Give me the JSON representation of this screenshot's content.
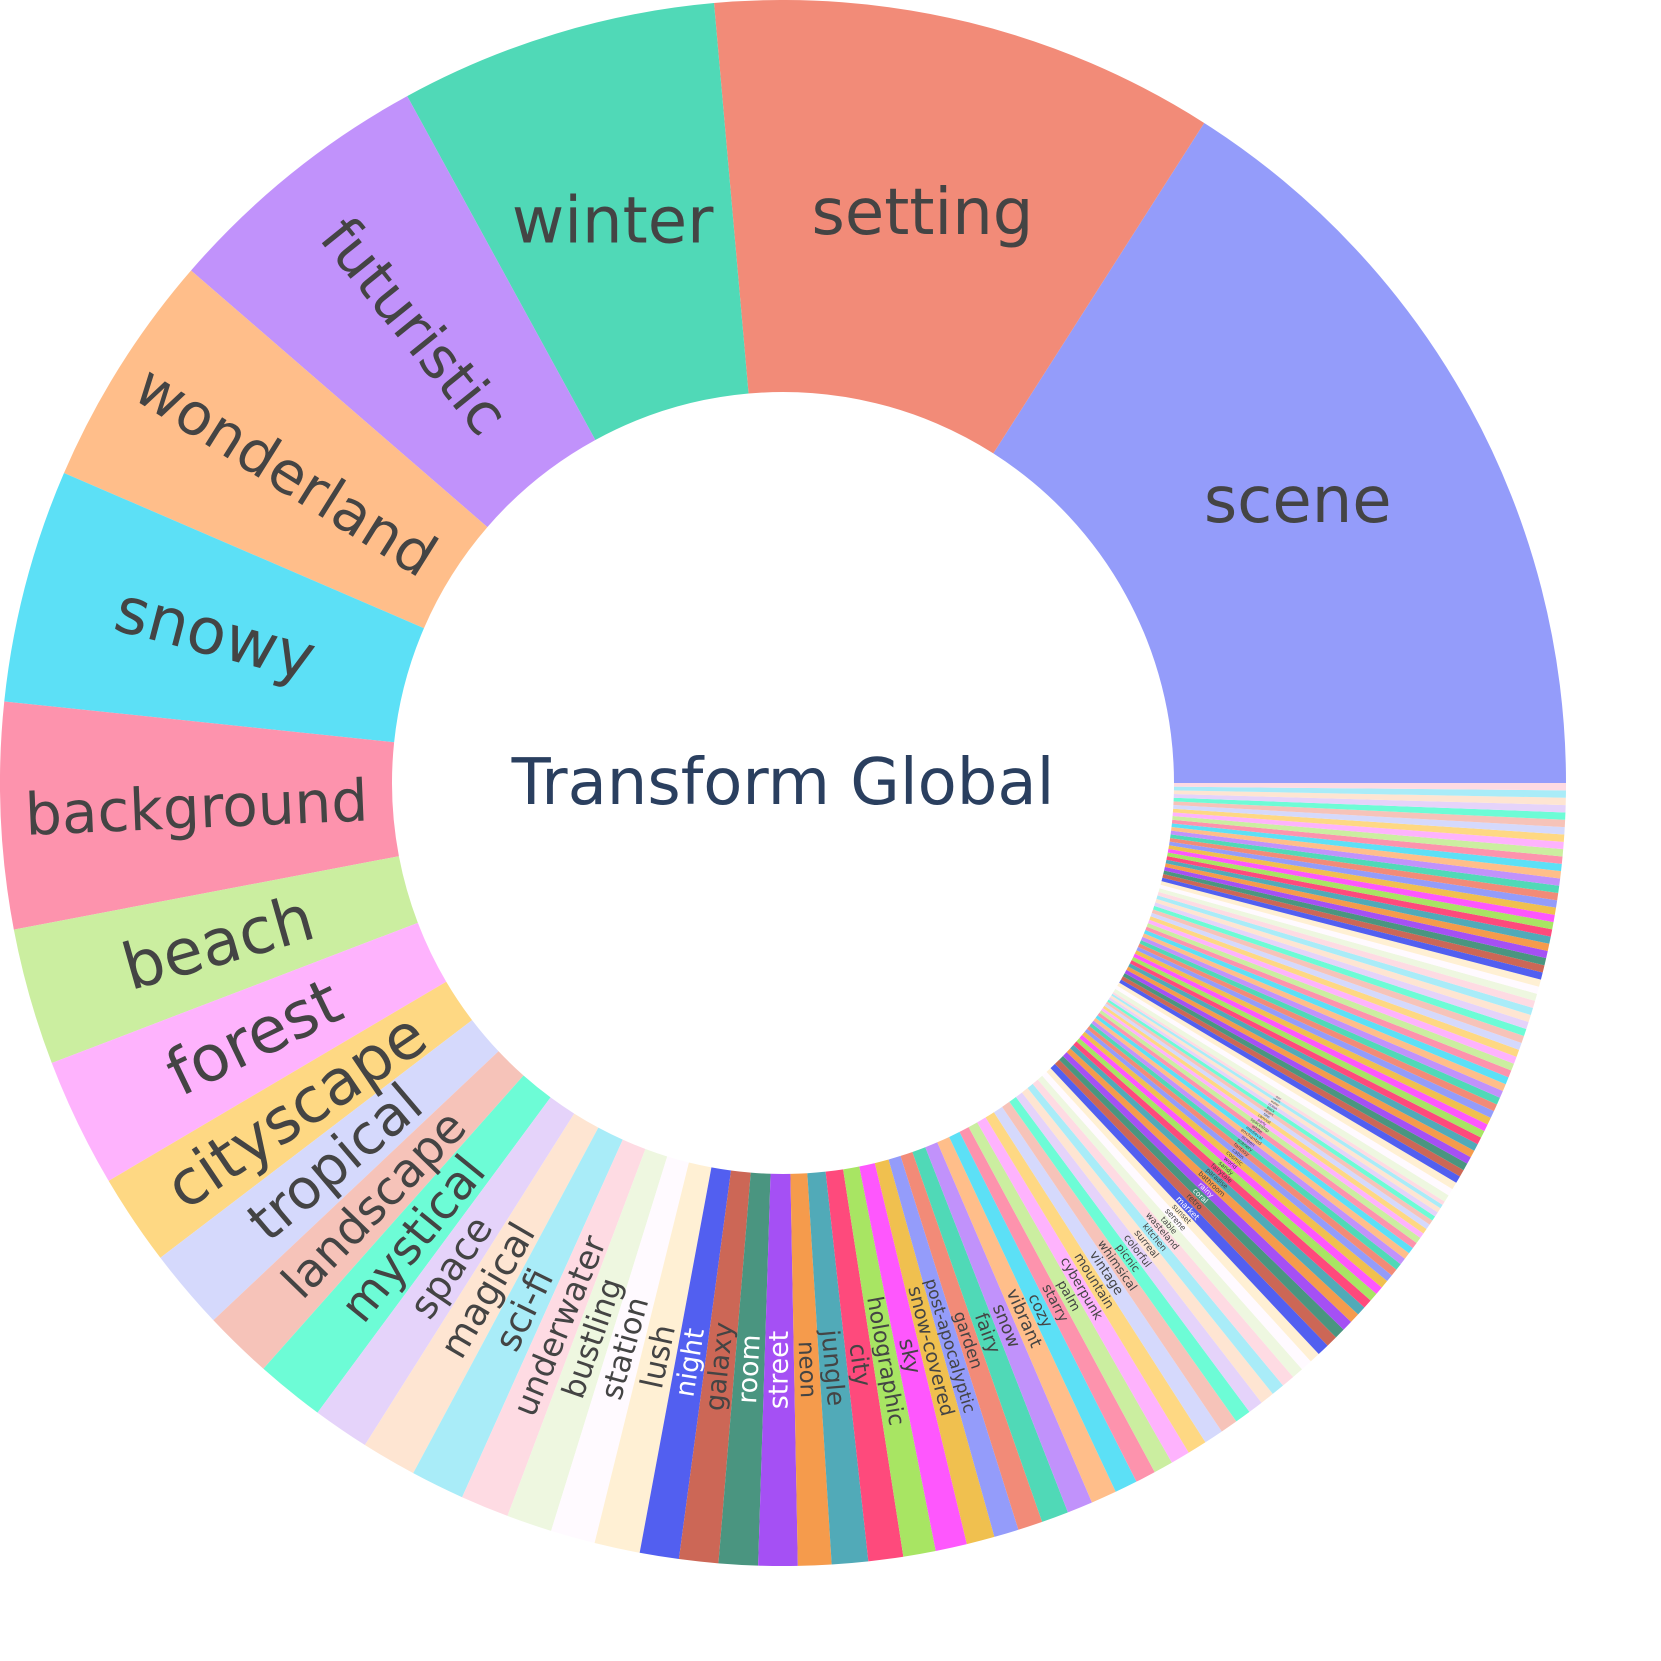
{
  "chart_data": {
    "type": "sunburst",
    "center_label": "Transform Global",
    "categories": [
      "scene",
      "setting",
      "winter",
      "futuristic",
      "wonderland",
      "snowy",
      "background",
      "beach",
      "forest",
      "cityscape",
      "tropical",
      "landscape",
      "mystical",
      "space",
      "magical",
      "sci-fi",
      "underwater",
      "bustling",
      "station",
      "lush",
      "night",
      "galaxy",
      "room",
      "street",
      "neon",
      "jungle",
      "city",
      "holographic",
      "sky",
      "snow-covered",
      "post-apocalyptic",
      "garden",
      "fairy",
      "snow",
      "vibrant",
      "cozy",
      "starry",
      "palm",
      "cyberpunk",
      "mountain",
      "vintage",
      "whimsical",
      "picnic",
      "colorful",
      "surreal",
      "kitchen",
      "wasteland",
      "table",
      "serene",
      "sunset",
      "market",
      "retro",
      "coral",
      "rainy",
      "bathroom",
      "paradise",
      "fairytale",
      "sandy",
      "world",
      "cosmic",
      "cabin",
      "fantasy",
      "scenery",
      "screen",
      "enchanted",
      "medieval",
      "white",
      "spaceship",
      "party",
      "carnival",
      "tale",
      "desert",
      "black",
      "ocean",
      "water",
      "castle",
      "door",
      null,
      null,
      null,
      null,
      null,
      null,
      null,
      null,
      null,
      null,
      null,
      null,
      null,
      null,
      null,
      null,
      null,
      null,
      null,
      null,
      null,
      null,
      null,
      null,
      null,
      null,
      null,
      null,
      null,
      null,
      null,
      null,
      null,
      null,
      null,
      null,
      null,
      null,
      null,
      null,
      null,
      null,
      null,
      null,
      null,
      null,
      null,
      null,
      null,
      null,
      null,
      null,
      null,
      null,
      null,
      null,
      null,
      null,
      null,
      null
    ],
    "values": [
      16.0,
      10.47,
      6.58,
      5.69,
      4.89,
      4.83,
      4.67,
      2.83,
      2.67,
      1.89,
      1.67,
      1.42,
      1.42,
      1.17,
      1.14,
      1.11,
      1.0,
      0.94,
      0.92,
      0.94,
      0.81,
      0.81,
      0.81,
      0.81,
      0.69,
      0.75,
      0.72,
      0.67,
      0.65,
      0.58,
      0.51,
      0.51,
      0.56,
      0.53,
      0.53,
      0.47,
      0.42,
      0.4,
      0.4,
      0.4,
      0.4,
      0.36,
      0.33,
      0.31,
      0.29,
      0.27,
      0.27,
      0.24,
      0.24,
      0.22,
      0.25,
      0.24,
      0.22,
      0.22,
      0.21,
      0.19,
      0.19,
      0.18,
      0.17,
      0.17,
      0.15,
      0.15,
      0.14,
      0.14,
      0.14,
      0.13,
      0.13,
      0.13,
      0.11,
      0.11,
      0.11,
      0.1,
      0.1,
      0.1,
      0.1,
      0.08,
      0.08,
      0.15,
      0.15,
      0.15,
      0.15,
      0.15,
      0.15,
      0.15,
      0.15,
      0.15,
      0.15,
      0.15,
      0.15,
      0.15,
      0.15,
      0.15,
      0.15,
      0.15,
      0.15,
      0.15,
      0.15,
      0.15,
      0.15,
      0.15,
      0.15,
      0.15,
      0.15,
      0.15,
      0.15,
      0.15,
      0.15,
      0.15,
      0.15,
      0.15,
      0.15,
      0.15,
      0.15,
      0.15,
      0.15,
      0.15,
      0.15,
      0.15,
      0.15,
      0.15,
      0.15,
      0.15,
      0.15,
      0.15,
      0.15,
      0.15,
      0.15,
      0.15,
      0.15,
      0.15,
      0.15,
      0.15,
      0.15,
      0.15,
      0.15,
      0.15,
      0.15
    ],
    "colors": [
      "#949cfa",
      "#f28b78",
      "#50d9b7",
      "#c192fb",
      "#ffbe8a",
      "#5ce0f6",
      "#fd93ad",
      "#cbeea0",
      "#feb3fd",
      "#fed883",
      "#d5d9fc",
      "#f6c3b9",
      "#6dfcd6",
      "#e5d3fa",
      "#fee5d2",
      "#a9ecf8",
      "#fedbe3",
      "#eef7e0",
      "#fffaff",
      "#fff0d4",
      "#525ff0",
      "#cc6756",
      "#4a9580",
      "#a550f4",
      "#f59b4c",
      "#51aab8",
      "#fe4a7c",
      "#a8e563",
      "#fe57fd",
      "#f0c04f"
    ]
  }
}
